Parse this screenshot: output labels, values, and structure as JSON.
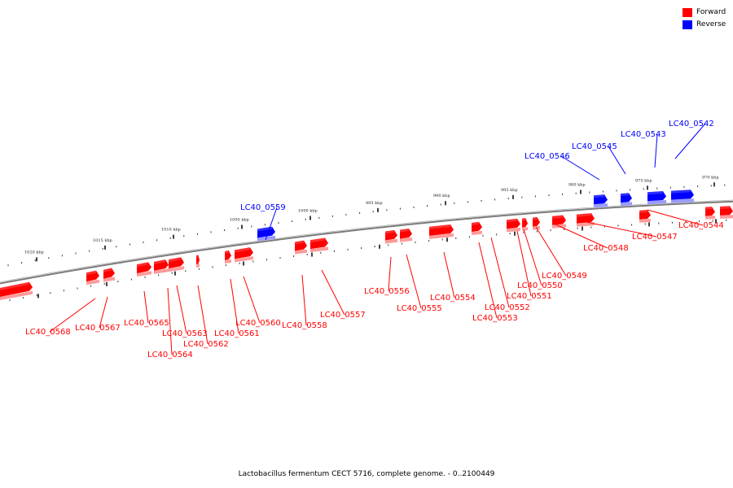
{
  "legend": {
    "forward": {
      "label": "Forward",
      "color": "#ff0000"
    },
    "reverse": {
      "label": "Reverse",
      "color": "#0000ff"
    }
  },
  "caption": "Lactobacillus fermentum CECT 5716, complete genome. - 0..2100449",
  "scale_labels": [
    {
      "text": "970 kbp",
      "kbp": 970
    },
    {
      "text": "975 kbp",
      "kbp": 975
    },
    {
      "text": "980 kbp",
      "kbp": 980
    },
    {
      "text": "985 kbp",
      "kbp": 985
    },
    {
      "text": "990 kbp",
      "kbp": 990
    },
    {
      "text": "995 kbp",
      "kbp": 995
    },
    {
      "text": "1000 kbp",
      "kbp": 1000
    },
    {
      "text": "1005 kbp",
      "kbp": 1005
    },
    {
      "text": "1010 kbp",
      "kbp": 1010
    },
    {
      "text": "1015 kbp",
      "kbp": 1015
    },
    {
      "text": "1020 kbp",
      "kbp": 1020
    }
  ],
  "genes": [
    {
      "name": "LC40_0542",
      "strand": "reverse"
    },
    {
      "name": "LC40_0543",
      "strand": "reverse"
    },
    {
      "name": "LC40_0544",
      "strand": "forward"
    },
    {
      "name": "LC40_0545",
      "strand": "reverse"
    },
    {
      "name": "LC40_0546",
      "strand": "reverse"
    },
    {
      "name": "LC40_0547",
      "strand": "forward"
    },
    {
      "name": "LC40_0548",
      "strand": "forward"
    },
    {
      "name": "LC40_0549",
      "strand": "forward"
    },
    {
      "name": "LC40_0550",
      "strand": "forward"
    },
    {
      "name": "LC40_0551",
      "strand": "forward"
    },
    {
      "name": "LC40_0552",
      "strand": "forward"
    },
    {
      "name": "LC40_0553",
      "strand": "forward"
    },
    {
      "name": "LC40_0554",
      "strand": "forward"
    },
    {
      "name": "LC40_0555",
      "strand": "forward"
    },
    {
      "name": "LC40_0556",
      "strand": "forward"
    },
    {
      "name": "LC40_0557",
      "strand": "forward"
    },
    {
      "name": "LC40_0558",
      "strand": "forward"
    },
    {
      "name": "LC40_0559",
      "strand": "reverse"
    },
    {
      "name": "LC40_0560",
      "strand": "forward"
    },
    {
      "name": "LC40_0561",
      "strand": "forward"
    },
    {
      "name": "LC40_0562",
      "strand": "forward"
    },
    {
      "name": "LC40_0563",
      "strand": "forward"
    },
    {
      "name": "LC40_0564",
      "strand": "forward"
    },
    {
      "name": "LC40_0565",
      "strand": "forward"
    },
    {
      "name": "LC40_0567",
      "strand": "forward"
    },
    {
      "name": "LC40_0568",
      "strand": "forward"
    }
  ]
}
